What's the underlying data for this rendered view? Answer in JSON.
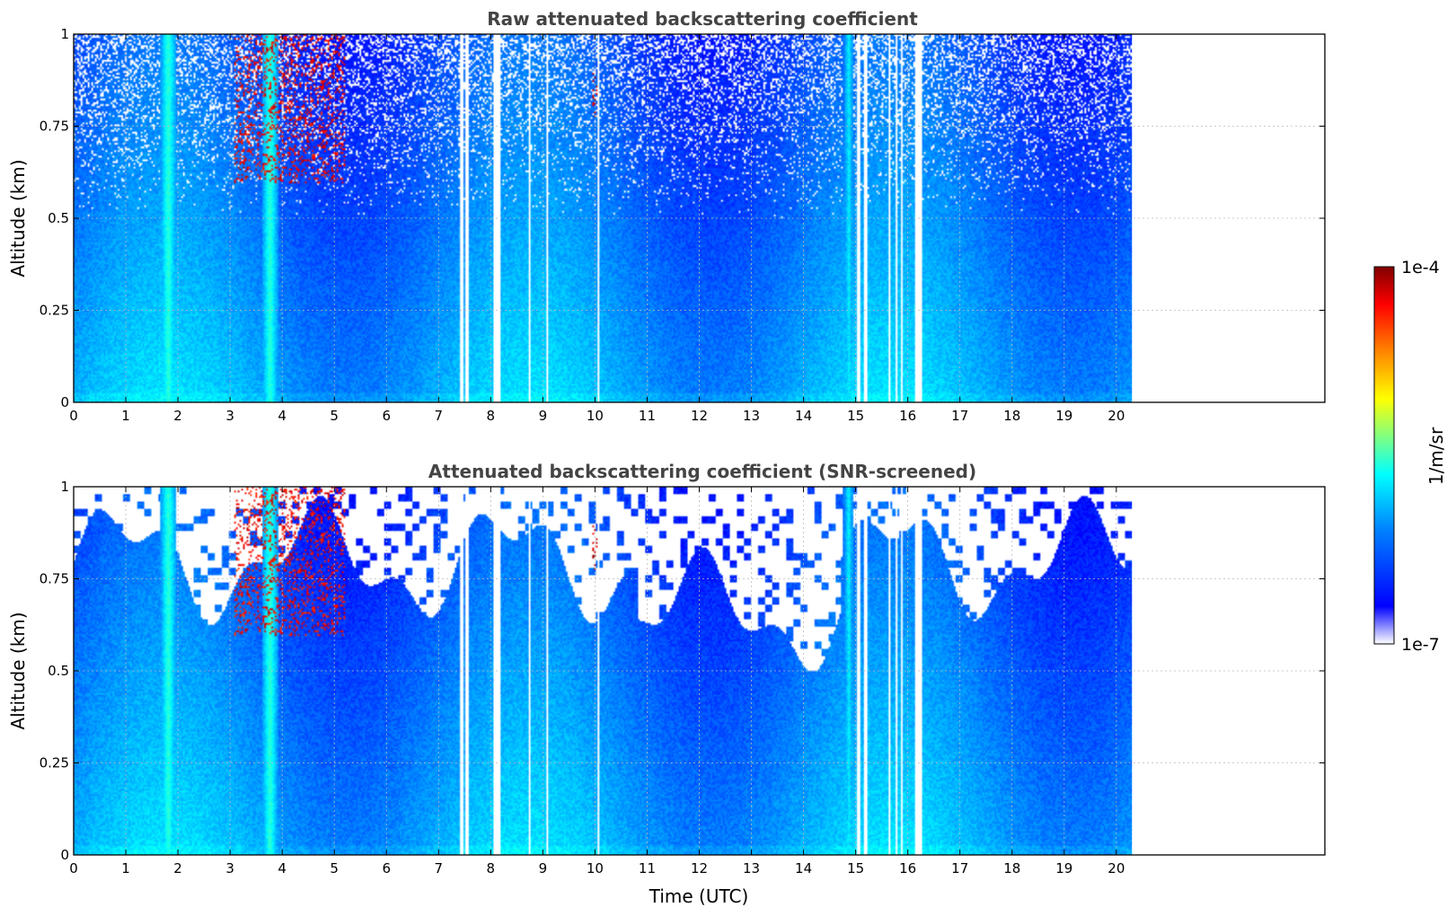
{
  "chart_data": [
    {
      "type": "heatmap",
      "title": "Raw attenuated backscattering coefficient",
      "xlabel": "",
      "ylabel": "Altitude (km)",
      "xlim": [
        0,
        24
      ],
      "ylim": [
        0,
        1
      ],
      "xticks": [
        "0",
        "1",
        "2",
        "3",
        "4",
        "5",
        "6",
        "7",
        "8",
        "9",
        "10",
        "11",
        "12",
        "13",
        "14",
        "15",
        "16",
        "17",
        "18",
        "19",
        "20"
      ],
      "yticks": [
        "0",
        "0.25",
        "0.5",
        "0.75",
        "1"
      ],
      "data_extent_x": [
        0,
        20.3
      ],
      "grid": true,
      "screened": false,
      "colormap": "jet",
      "gaps": [
        [
          7.38,
          7.45
        ],
        [
          7.5,
          7.55
        ],
        [
          8.05,
          8.18
        ],
        [
          8.7,
          8.73
        ],
        [
          9.05,
          9.08
        ],
        [
          10.03,
          10.06
        ],
        [
          15.02,
          15.08
        ],
        [
          15.15,
          15.2
        ],
        [
          15.6,
          15.66
        ],
        [
          15.75,
          15.8
        ],
        [
          15.85,
          15.9
        ],
        [
          16.12,
          16.25
        ]
      ],
      "features": [
        {
          "kind": "aerosol-plume",
          "x_range": [
            1.65,
            1.95
          ],
          "alt_range": [
            0,
            1
          ],
          "level": 0.42
        },
        {
          "kind": "aerosol-plume",
          "x_range": [
            3.6,
            3.9
          ],
          "alt_range": [
            0,
            1
          ],
          "level": 0.42
        },
        {
          "kind": "aerosol-plume",
          "x_range": [
            14.75,
            14.95
          ],
          "alt_range": [
            0,
            1
          ],
          "level": 0.36
        },
        {
          "kind": "cloud",
          "x_range": [
            3.05,
            5.2
          ],
          "alt_range": [
            0.6,
            1
          ],
          "level": 0.95
        },
        {
          "kind": "cloud",
          "x_range": [
            9.92,
            10.05
          ],
          "alt_range": [
            0.78,
            0.9
          ],
          "level": 1.0
        }
      ]
    },
    {
      "type": "heatmap",
      "title": "Attenuated backscattering coefficient (SNR-screened)",
      "xlabel": "Time (UTC)",
      "ylabel": "Altitude (km)",
      "xlim": [
        0,
        24
      ],
      "ylim": [
        0,
        1
      ],
      "xticks": [
        "0",
        "1",
        "2",
        "3",
        "4",
        "5",
        "6",
        "7",
        "8",
        "9",
        "10",
        "11",
        "12",
        "13",
        "14",
        "15",
        "16",
        "17",
        "18",
        "19",
        "20"
      ],
      "yticks": [
        "0",
        "0.25",
        "0.5",
        "0.75",
        "1"
      ],
      "data_extent_x": [
        0,
        20.3
      ],
      "grid": true,
      "screened": true,
      "colormap": "jet",
      "gaps": [
        [
          7.38,
          7.45
        ],
        [
          7.5,
          7.55
        ],
        [
          8.05,
          8.18
        ],
        [
          8.7,
          8.73
        ],
        [
          9.05,
          9.08
        ],
        [
          10.03,
          10.06
        ],
        [
          15.02,
          15.08
        ],
        [
          15.15,
          15.2
        ],
        [
          15.6,
          15.66
        ],
        [
          15.75,
          15.8
        ],
        [
          15.85,
          15.9
        ],
        [
          16.12,
          16.25
        ]
      ],
      "features": [
        {
          "kind": "aerosol-plume",
          "x_range": [
            1.65,
            1.95
          ],
          "alt_range": [
            0,
            1
          ],
          "level": 0.42
        },
        {
          "kind": "aerosol-plume",
          "x_range": [
            3.6,
            3.9
          ],
          "alt_range": [
            0,
            1
          ],
          "level": 0.42
        },
        {
          "kind": "aerosol-plume",
          "x_range": [
            14.75,
            14.95
          ],
          "alt_range": [
            0,
            1
          ],
          "level": 0.36
        },
        {
          "kind": "cloud",
          "x_range": [
            3.05,
            5.2
          ],
          "alt_range": [
            0.6,
            1
          ],
          "level": 0.95
        },
        {
          "kind": "cloud",
          "x_range": [
            9.92,
            10.05
          ],
          "alt_range": [
            0.78,
            0.9
          ],
          "level": 1.0
        }
      ]
    }
  ],
  "colorbar": {
    "label": "1/m/sr",
    "min_label": "1e-7",
    "max_label": "1e-4",
    "scale": "log",
    "colors": [
      "#ffffff",
      "#0000ff",
      "#0080ff",
      "#00ffff",
      "#80ff80",
      "#ffff00",
      "#ff8000",
      "#ff0000",
      "#800000"
    ]
  }
}
